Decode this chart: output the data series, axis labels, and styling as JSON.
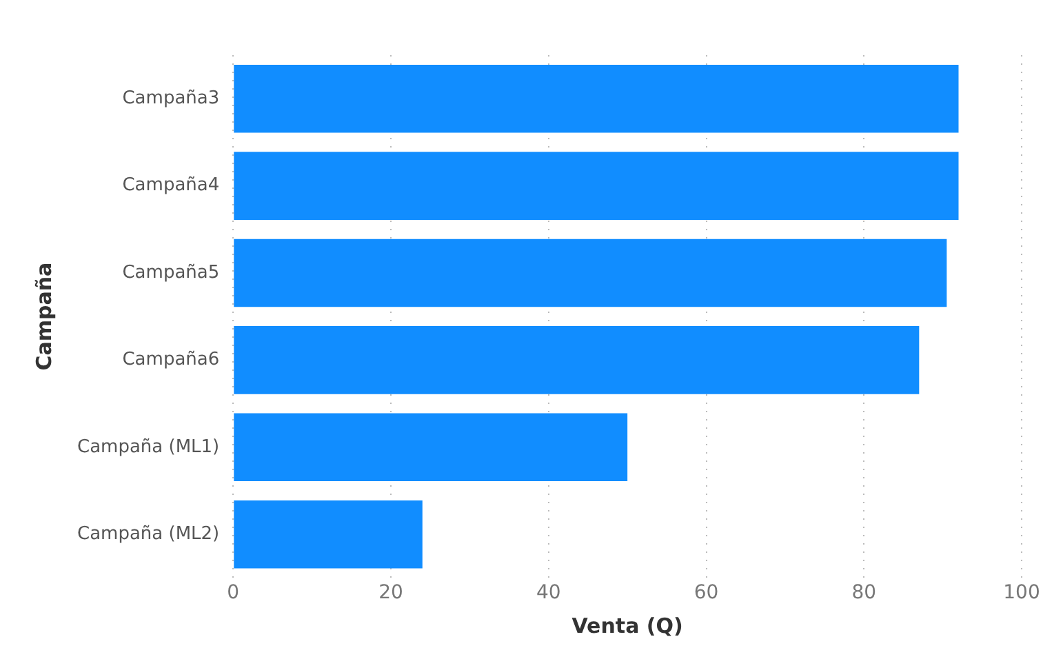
{
  "chart_data": {
    "type": "bar",
    "orientation": "horizontal",
    "xlabel": "Venta (Q)",
    "ylabel": "Campaña",
    "categories": [
      "Campaña3",
      "Campaña4",
      "Campaña5",
      "Campaña6",
      "Campaña (ML1)",
      "Campaña (ML2)"
    ],
    "values": [
      92,
      92,
      90.5,
      87,
      50,
      24
    ],
    "color": "#118dff",
    "xlim": [
      0,
      100
    ],
    "xticks": [
      0,
      20,
      40,
      60,
      80,
      100
    ],
    "grid": "x"
  }
}
